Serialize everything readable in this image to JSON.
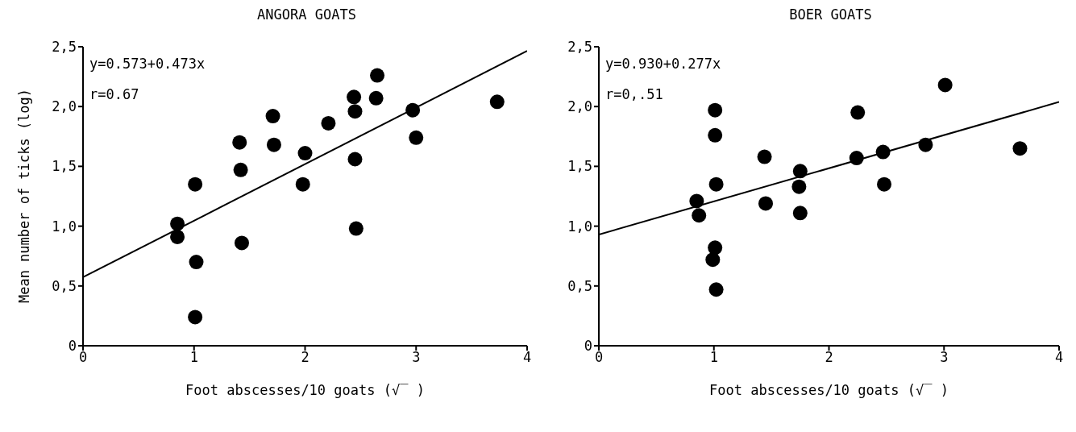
{
  "chart_data": [
    {
      "type": "scatter",
      "title": "ANGORA GOATS",
      "xlabel": "Foot abscesses/10 goats (√‾ )",
      "ylabel": "Mean number of ticks (log)",
      "annotations": [
        "y=0.573+0.473x",
        "r=0.67"
      ],
      "xlim": [
        0,
        4
      ],
      "xticks": [
        0,
        1,
        2,
        3,
        4
      ],
      "ylim": [
        0,
        2.5
      ],
      "yticks": [
        0,
        {
          "value": 0.5,
          "label": "0,5"
        },
        {
          "value": 1,
          "label": "1,0"
        },
        {
          "value": 1.5,
          "label": "1,5"
        },
        {
          "value": 2,
          "label": "2,0"
        },
        {
          "value": 2.5,
          "label": "2,5"
        }
      ],
      "grid": false,
      "legend": false,
      "marker": "circle",
      "series": [
        {
          "color": "#000000",
          "x": [
            0.85,
            0.85,
            1.01,
            1.02,
            1.01,
            1.41,
            1.42,
            1.43,
            1.71,
            1.72,
            2.0,
            1.98,
            2.21,
            2.44,
            2.45,
            2.45,
            2.46,
            2.65,
            2.64,
            2.97,
            3.0,
            3.73
          ],
          "values": [
            1.02,
            0.91,
            1.35,
            0.7,
            0.24,
            1.7,
            1.47,
            0.86,
            1.92,
            1.68,
            1.61,
            1.35,
            1.86,
            2.08,
            1.96,
            1.56,
            0.98,
            2.26,
            2.07,
            1.97,
            1.74,
            2.04
          ]
        },
        {
          "type": "line",
          "color": "#000000",
          "marker": "none",
          "x": [
            0,
            4
          ],
          "values": [
            0.573,
            2.465
          ]
        }
      ]
    },
    {
      "type": "scatter",
      "title": "BOER GOATS",
      "xlabel": "Foot abscesses/10 goats (√‾ )",
      "annotations": [
        "y=0.930+0.277x",
        "r=0,.51"
      ],
      "xlim": [
        0,
        4
      ],
      "xticks": [
        0,
        1,
        2,
        3,
        4
      ],
      "ylim": [
        0,
        2.5
      ],
      "yticks": [
        0,
        {
          "value": 0.5,
          "label": "0,5"
        },
        {
          "value": 1,
          "label": "1,0"
        },
        {
          "value": 1.5,
          "label": "1,5"
        },
        {
          "value": 2,
          "label": "2,0"
        },
        {
          "value": 2.5,
          "label": "2,5"
        }
      ],
      "grid": false,
      "legend": false,
      "marker": "circle",
      "series": [
        {
          "color": "#000000",
          "x": [
            1.01,
            1.01,
            1.02,
            0.85,
            0.87,
            1.01,
            0.99,
            1.02,
            1.44,
            1.45,
            1.75,
            1.74,
            1.75,
            2.25,
            2.24,
            2.47,
            2.48,
            2.84,
            3.01,
            3.66
          ],
          "values": [
            1.97,
            1.76,
            1.35,
            1.21,
            1.09,
            0.82,
            0.72,
            0.47,
            1.58,
            1.19,
            1.46,
            1.33,
            1.11,
            1.95,
            1.57,
            1.62,
            1.35,
            1.68,
            2.18,
            1.65
          ]
        },
        {
          "type": "line",
          "color": "#000000",
          "marker": "none",
          "x": [
            0,
            4
          ],
          "values": [
            0.93,
            2.038
          ]
        }
      ]
    }
  ]
}
